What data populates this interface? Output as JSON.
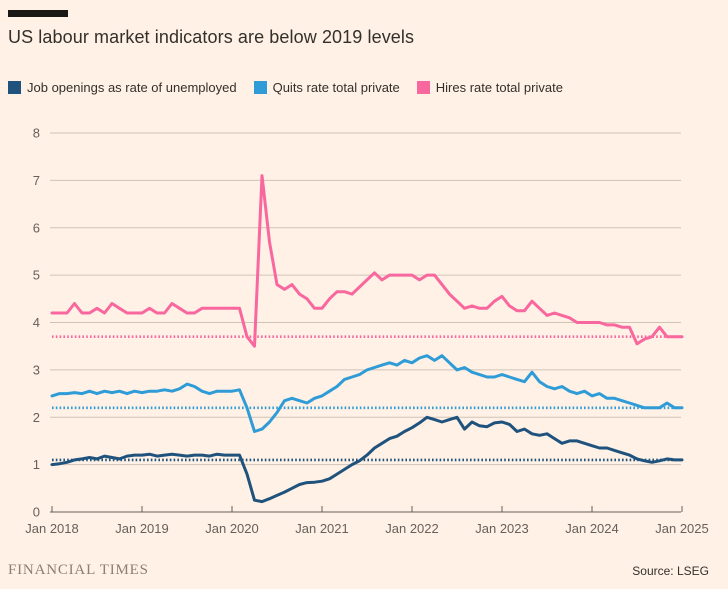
{
  "header": {
    "title": "US labour market indicators are below 2019 levels"
  },
  "legend": [
    {
      "label": "Job openings as rate of unemployed",
      "color": "#1F537D"
    },
    {
      "label": "Quits rate total private",
      "color": "#2F9CD7"
    },
    {
      "label": "Hires rate total private",
      "color": "#F8689E"
    }
  ],
  "chart_data": {
    "type": "line",
    "title": "US labour market indicators are below 2019 levels",
    "xlabel": "",
    "ylabel": "",
    "ylim": [
      0,
      8
    ],
    "y_ticks": [
      0,
      1,
      2,
      3,
      4,
      5,
      6,
      7,
      8
    ],
    "grid": "horizontal",
    "legend_position": "top",
    "x_unit": "month",
    "x_range": [
      "Jan 2018",
      "Jan 2025"
    ],
    "x_tick_labels": [
      "Jan 2018",
      "Jan 2019",
      "Jan 2020",
      "Jan 2021",
      "Jan 2022",
      "Jan 2023",
      "Jan 2024",
      "Jan 2025"
    ],
    "reference_note": "dotted lines mark 2019 levels",
    "series": [
      {
        "name": "Job openings as rate of unemployed",
        "color": "#1F537D",
        "reference_2019_level": 1.1,
        "values": [
          1.0,
          1.02,
          1.05,
          1.1,
          1.12,
          1.15,
          1.12,
          1.18,
          1.15,
          1.12,
          1.18,
          1.2,
          1.2,
          1.22,
          1.18,
          1.2,
          1.22,
          1.2,
          1.18,
          1.2,
          1.2,
          1.18,
          1.22,
          1.2,
          1.2,
          1.2,
          0.8,
          0.25,
          0.22,
          0.28,
          0.35,
          0.42,
          0.5,
          0.58,
          0.62,
          0.63,
          0.65,
          0.7,
          0.8,
          0.9,
          1.0,
          1.08,
          1.2,
          1.35,
          1.45,
          1.55,
          1.6,
          1.7,
          1.78,
          1.88,
          2.0,
          1.95,
          1.9,
          1.95,
          2.0,
          1.75,
          1.9,
          1.82,
          1.8,
          1.88,
          1.9,
          1.85,
          1.7,
          1.75,
          1.65,
          1.62,
          1.65,
          1.55,
          1.45,
          1.5,
          1.5,
          1.45,
          1.4,
          1.35,
          1.35,
          1.3,
          1.25,
          1.2,
          1.12,
          1.08,
          1.05,
          1.08,
          1.12,
          1.1,
          1.1
        ]
      },
      {
        "name": "Quits rate total private",
        "color": "#2F9CD7",
        "reference_2019_level": 2.2,
        "values": [
          2.45,
          2.5,
          2.5,
          2.52,
          2.5,
          2.55,
          2.5,
          2.55,
          2.52,
          2.55,
          2.5,
          2.55,
          2.52,
          2.55,
          2.55,
          2.58,
          2.55,
          2.6,
          2.7,
          2.65,
          2.55,
          2.5,
          2.55,
          2.55,
          2.55,
          2.58,
          2.2,
          1.7,
          1.75,
          1.9,
          2.1,
          2.35,
          2.4,
          2.35,
          2.3,
          2.4,
          2.45,
          2.55,
          2.65,
          2.8,
          2.85,
          2.9,
          3.0,
          3.05,
          3.1,
          3.15,
          3.1,
          3.2,
          3.15,
          3.25,
          3.3,
          3.2,
          3.3,
          3.15,
          3.0,
          3.05,
          2.95,
          2.9,
          2.85,
          2.85,
          2.9,
          2.85,
          2.8,
          2.75,
          2.95,
          2.75,
          2.65,
          2.6,
          2.65,
          2.55,
          2.5,
          2.55,
          2.45,
          2.5,
          2.4,
          2.4,
          2.35,
          2.3,
          2.25,
          2.2,
          2.2,
          2.2,
          2.3,
          2.2,
          2.2
        ]
      },
      {
        "name": "Hires rate total private",
        "color": "#F8689E",
        "reference_2019_level": 3.7,
        "values": [
          4.2,
          4.2,
          4.2,
          4.4,
          4.2,
          4.2,
          4.3,
          4.2,
          4.4,
          4.3,
          4.2,
          4.2,
          4.2,
          4.3,
          4.2,
          4.2,
          4.4,
          4.3,
          4.2,
          4.2,
          4.3,
          4.3,
          4.3,
          4.3,
          4.3,
          4.3,
          3.7,
          3.5,
          7.1,
          5.7,
          4.8,
          4.7,
          4.8,
          4.6,
          4.5,
          4.3,
          4.3,
          4.5,
          4.65,
          4.65,
          4.6,
          4.75,
          4.9,
          5.05,
          4.9,
          5.0,
          5.0,
          5.0,
          5.0,
          4.9,
          5.0,
          5.0,
          4.8,
          4.6,
          4.45,
          4.3,
          4.35,
          4.3,
          4.3,
          4.45,
          4.55,
          4.35,
          4.25,
          4.25,
          4.45,
          4.3,
          4.15,
          4.2,
          4.15,
          4.1,
          4.0,
          4.0,
          4.0,
          4.0,
          3.95,
          3.95,
          3.9,
          3.9,
          3.55,
          3.65,
          3.7,
          3.9,
          3.7,
          3.7,
          3.7
        ]
      }
    ],
    "colors": {
      "background": "#FFF1E5",
      "gridline": "#CFC3B6",
      "axis": "#66605B",
      "text": "#33302C"
    }
  },
  "footer": {
    "brand": "FINANCIAL TIMES",
    "source": "Source: LSEG"
  }
}
